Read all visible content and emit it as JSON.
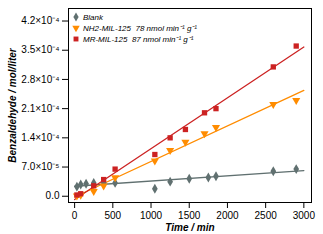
{
  "chart_data": {
    "type": "scatter",
    "xlabel": "Time / min",
    "ylabel": "Benzaldehyde / mol/liter",
    "xlim": [
      -80,
      3100
    ],
    "xticks": [
      0,
      500,
      1000,
      1500,
      2000,
      2500,
      3000
    ],
    "ylim": [
      -1.5e-05,
      0.00045
    ],
    "yticks": [
      {
        "value": 0.0,
        "label": "0.0"
      },
      {
        "value": 7e-05,
        "label": "7.0×10⁻⁵"
      },
      {
        "value": 0.00014,
        "label": "1.4×10⁻⁴"
      },
      {
        "value": 0.00021,
        "label": "2.1×10⁻⁴"
      },
      {
        "value": 0.00028,
        "label": "2.8×10⁻⁴"
      },
      {
        "value": 0.00035,
        "label": "3.5×10⁻⁴"
      },
      {
        "value": 0.00042,
        "label": "4.2×10⁻⁴"
      }
    ],
    "grid": false,
    "legend": "upper left",
    "series": [
      {
        "name": "Blank",
        "color": "#607070",
        "marker": "diamond",
        "x": [
          30,
          80,
          150,
          250,
          380,
          530,
          1050,
          1250,
          1500,
          1750,
          1850,
          2600,
          2900
        ],
        "y": [
          2.3e-05,
          2.8e-05,
          3e-05,
          3.2e-05,
          3.3e-05,
          3.2e-05,
          1.8e-05,
          3.5e-05,
          4.2e-05,
          4.5e-05,
          4.8e-05,
          6e-05,
          6.5e-05
        ],
        "fit": {
          "x": [
            0,
            3000
          ],
          "y": [
            2.39654e-05,
            6.15596e-05
          ]
        }
      },
      {
        "name": "NH2-MIL-125  78 nmol min⁻¹ g⁻¹",
        "color": "#ff8c00",
        "marker": "triangle_down",
        "x": [
          30,
          80,
          250,
          380,
          530,
          1050,
          1250,
          1450,
          1700,
          1850,
          2600,
          2900
        ],
        "y": [
          1e-06,
          3e-06,
          1.2e-05,
          2.5e-05,
          4.5e-05,
          8.5e-05,
          0.00011,
          0.00013,
          0.00015,
          0.000165,
          0.00022,
          0.00023
        ],
        "fit": {
          "x": [
            0,
            3000
          ],
          "y": [
            -1.79727e-06,
            0.000253548
          ]
        }
      },
      {
        "name": "MR-MIL-125  87 nmol min⁻¹ g⁻¹",
        "color": "#cc2222",
        "marker": "square",
        "x": [
          30,
          80,
          250,
          380,
          530,
          1050,
          1250,
          1450,
          1700,
          1850,
          2600,
          2900
        ],
        "y": [
          3e-06,
          6e-06,
          2.5e-05,
          4e-05,
          6.5e-05,
          0.0001,
          0.00014,
          0.00016,
          0.0002,
          0.00021,
          0.00031,
          0.00036
        ],
        "fit": {
          "x": [
            0,
            3000
          ],
          "y": [
            -7.9491e-06,
            0.000357592
          ]
        }
      }
    ]
  }
}
